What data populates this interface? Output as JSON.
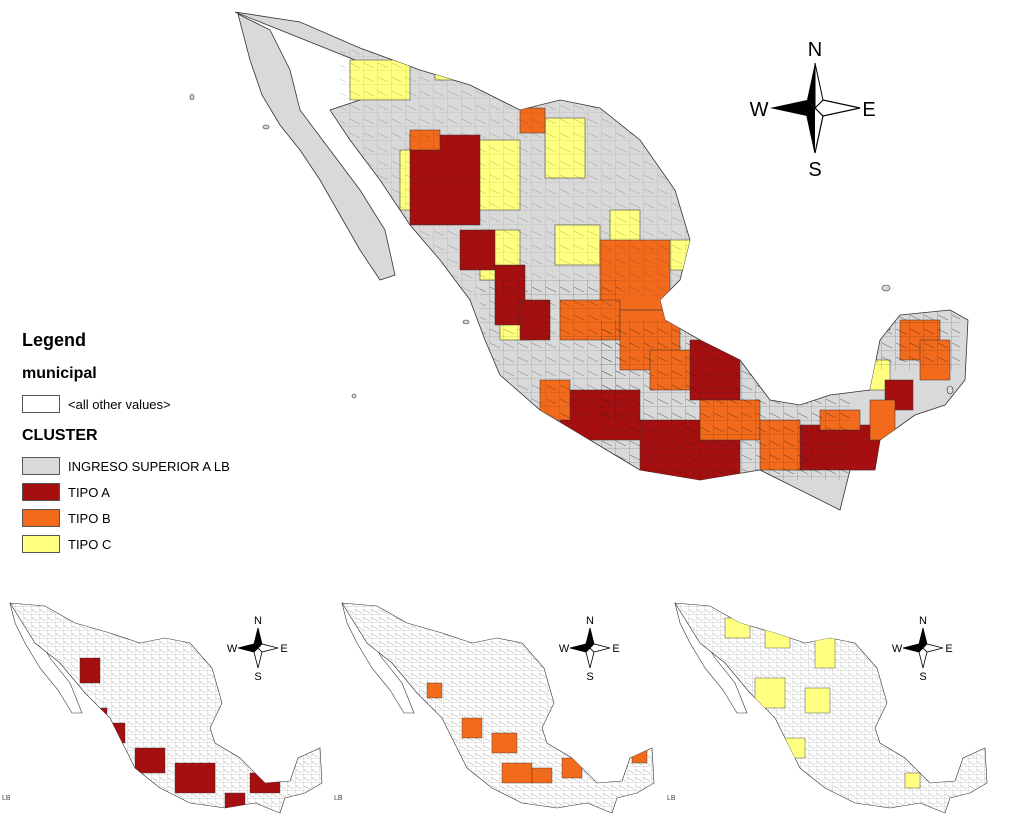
{
  "legend": {
    "title": "Legend",
    "layer_name": "municipal",
    "other_values_label": "<all other values>",
    "cluster_title": "CLUSTER",
    "items": [
      {
        "label": "INGRESO SUPERIOR A LB",
        "color": "#d9d9d9"
      },
      {
        "label": "TIPO A",
        "color": "#a50f0f"
      },
      {
        "label": "TIPO B",
        "color": "#f26a1b"
      },
      {
        "label": "TIPO C",
        "color": "#ffff80"
      }
    ]
  },
  "compass": {
    "n": "N",
    "s": "S",
    "e": "E",
    "w": "W"
  },
  "small_maps": [
    {
      "highlight_color": "#a50f0f",
      "corner_text": "LB"
    },
    {
      "highlight_color": "#f26a1b",
      "corner_text": "LB"
    },
    {
      "highlight_color": "#ffff80",
      "corner_text": "LB"
    }
  ]
}
